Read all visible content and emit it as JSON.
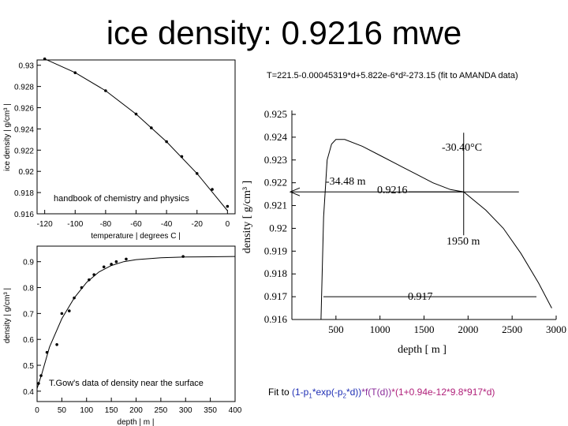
{
  "slide": {
    "title": "ice density: 0.9216 mwe",
    "formula_top": "T=221.5-0.00045319*d+5.822e-6*d²-273.15 (fit to AMANDA data)",
    "fit_prefix": "Fit to ",
    "fit_part1": "(1-p",
    "fit_sub1": "1",
    "fit_part2": "*exp(-p",
    "fit_sub2": "2",
    "fit_part3": "*d))",
    "fit_part4": "*f(T(d))",
    "fit_part5": "*(1+0.94e-12*9.8*917*d)"
  },
  "chart_data": [
    {
      "id": "temp",
      "type": "line",
      "note": "handbook of chemistry and physics",
      "xlabel": "temperature | degrees C |",
      "ylabel": "ice density | g/cm³ |",
      "xlim": [
        -125,
        5
      ],
      "ylim": [
        0.916,
        0.9305
      ],
      "xticks": [
        -120,
        -100,
        -80,
        -60,
        -40,
        -20,
        0
      ],
      "xtick_labels": [
        "-120",
        "-100",
        "-80",
        "-60",
        "-40",
        "-20",
        "0"
      ],
      "yticks": [
        0.916,
        0.918,
        0.92,
        0.922,
        0.924,
        0.926,
        0.928,
        0.93
      ],
      "ytick_labels": [
        "0.916",
        "0.918",
        "0.92",
        "0.922",
        "0.924",
        "0.926",
        "0.928",
        "0.93"
      ],
      "points": [
        [
          -120,
          0.9306
        ],
        [
          -100,
          0.9293
        ],
        [
          -80,
          0.9276
        ],
        [
          -60,
          0.9254
        ],
        [
          -50,
          0.9241
        ],
        [
          -40,
          0.9228
        ],
        [
          -30,
          0.9214
        ],
        [
          -20,
          0.9198
        ],
        [
          -10,
          0.9183
        ],
        [
          0,
          0.9167
        ]
      ],
      "curve": [
        [
          -120,
          0.9306
        ],
        [
          -100,
          0.9293
        ],
        [
          -80,
          0.9276
        ],
        [
          -60,
          0.9254
        ],
        [
          -40,
          0.9228
        ],
        [
          -20,
          0.9198
        ],
        [
          0,
          0.9163
        ]
      ]
    },
    {
      "id": "surface",
      "type": "line",
      "note": "T.Gow's data of density near the surface",
      "xlabel": "depth | m |",
      "ylabel": "density | g/cm³ |",
      "xlim": [
        0,
        400
      ],
      "ylim": [
        0.36,
        0.96
      ],
      "xticks": [
        0,
        50,
        100,
        150,
        200,
        250,
        300,
        350,
        400
      ],
      "xtick_labels": [
        "0",
        "50",
        "100",
        "150",
        "200",
        "250",
        "300",
        "350",
        "400"
      ],
      "yticks": [
        0.4,
        0.5,
        0.6,
        0.7,
        0.8,
        0.9
      ],
      "ytick_labels": [
        "0.4",
        "0.5",
        "0.6",
        "0.7",
        "0.8",
        "0.9"
      ],
      "points": [
        [
          3,
          0.43
        ],
        [
          8,
          0.46
        ],
        [
          20,
          0.55
        ],
        [
          40,
          0.58
        ],
        [
          50,
          0.7
        ],
        [
          65,
          0.71
        ],
        [
          75,
          0.76
        ],
        [
          90,
          0.8
        ],
        [
          105,
          0.83
        ],
        [
          115,
          0.85
        ],
        [
          135,
          0.88
        ],
        [
          150,
          0.89
        ],
        [
          160,
          0.9
        ],
        [
          180,
          0.91
        ],
        [
          295,
          0.92
        ]
      ],
      "curve": [
        [
          0,
          0.41
        ],
        [
          10,
          0.47
        ],
        [
          25,
          0.57
        ],
        [
          50,
          0.68
        ],
        [
          75,
          0.76
        ],
        [
          100,
          0.82
        ],
        [
          125,
          0.86
        ],
        [
          150,
          0.885
        ],
        [
          175,
          0.9
        ],
        [
          200,
          0.908
        ],
        [
          250,
          0.915
        ],
        [
          300,
          0.918
        ],
        [
          350,
          0.919
        ],
        [
          400,
          0.92
        ]
      ]
    },
    {
      "id": "depth",
      "type": "line",
      "xlabel": "depth [ m ]",
      "ylabel": "density [ g/cm³ ]",
      "xlim": [
        0,
        3000
      ],
      "ylim": [
        0.916,
        0.925
      ],
      "xticks": [
        500,
        1000,
        1500,
        2000,
        2500,
        3000
      ],
      "xtick_labels": [
        "500",
        "1000",
        "1500",
        "2000",
        "2500",
        "3000"
      ],
      "yticks": [
        0.916,
        0.917,
        0.918,
        0.919,
        0.92,
        0.921,
        0.922,
        0.923,
        0.924,
        0.925
      ],
      "ytick_labels": [
        "0.916",
        "0.917",
        "0.918",
        "0.919",
        "0.92",
        "0.921",
        "0.922",
        "0.923",
        "0.924",
        "0.925"
      ],
      "curve": [
        [
          330,
          0.916
        ],
        [
          360,
          0.9205
        ],
        [
          400,
          0.923
        ],
        [
          450,
          0.9237
        ],
        [
          500,
          0.9239
        ],
        [
          600,
          0.9239
        ],
        [
          800,
          0.9236
        ],
        [
          1000,
          0.9232
        ],
        [
          1200,
          0.9228
        ],
        [
          1400,
          0.9224
        ],
        [
          1600,
          0.922
        ],
        [
          1800,
          0.9217
        ],
        [
          1950,
          0.9216
        ],
        [
          2200,
          0.9208
        ],
        [
          2400,
          0.92
        ],
        [
          2600,
          0.9189
        ],
        [
          2800,
          0.9176
        ],
        [
          2950,
          0.9165
        ]
      ],
      "annotations": {
        "temperature": "-30.40°C",
        "depth_equiv": "-34.48 m",
        "density_at": "0.9216",
        "depth_at": "1950 m",
        "ref_density": "0.917"
      },
      "markers": {
        "cross_x": 1950,
        "cross_y": 0.9216,
        "arrow_y": 0.9216,
        "ref_y": 0.917
      }
    }
  ]
}
